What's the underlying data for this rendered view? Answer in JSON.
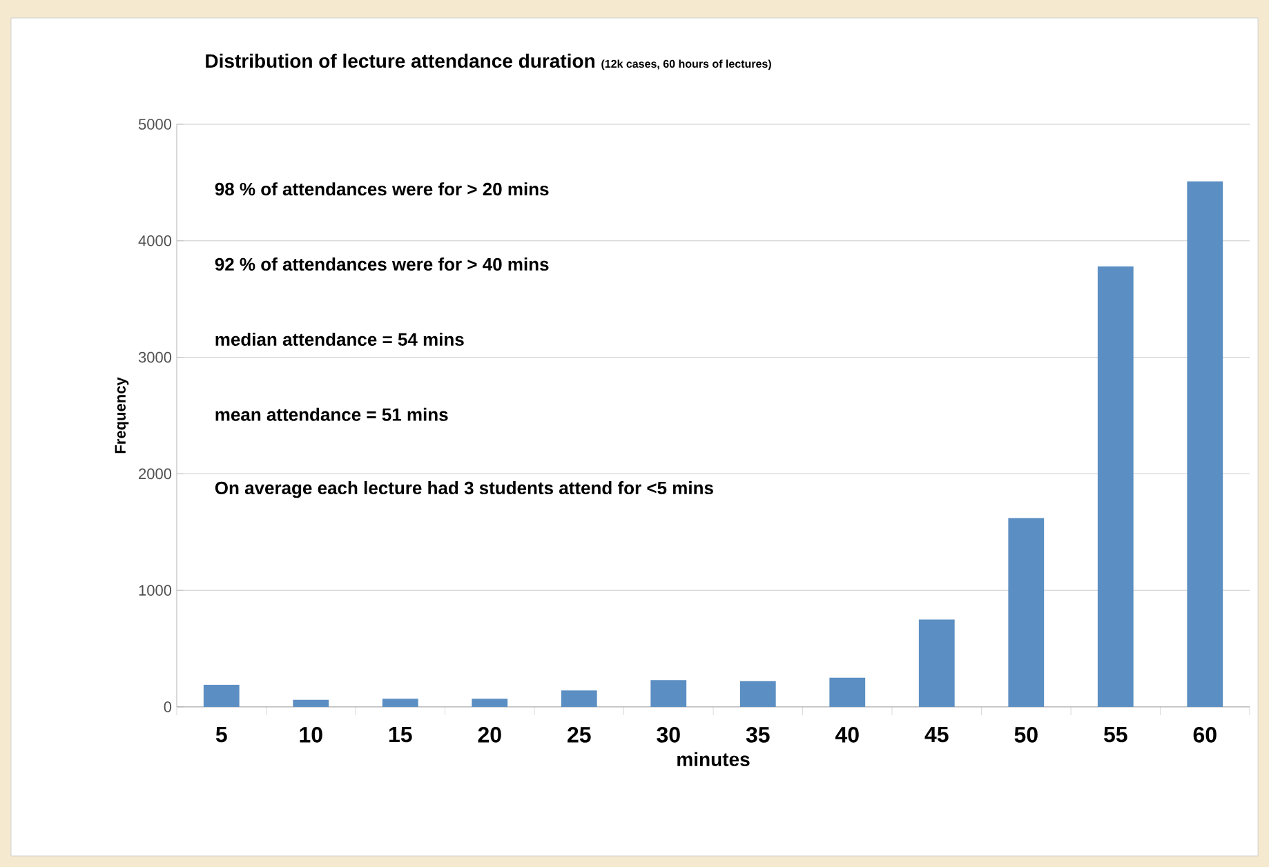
{
  "chart_data": {
    "type": "bar",
    "title": "Distribution of lecture attendance duration",
    "subtitle": "(12k cases, 60 hours of lectures)",
    "xlabel": "minutes",
    "ylabel": "Frequency",
    "annotations": [
      "98 % of attendances were for > 20 mins",
      "92 % of attendances were for > 40 mins",
      "median attendance = 54 mins",
      "mean attendance = 51 mins",
      "On average each lecture had 3 students attend for <5 mins"
    ],
    "categories": [
      "5",
      "10",
      "15",
      "20",
      "25",
      "30",
      "35",
      "40",
      "45",
      "50",
      "55",
      "60"
    ],
    "values": [
      190,
      60,
      70,
      70,
      140,
      230,
      220,
      250,
      750,
      1620,
      3780,
      4510
    ],
    "color": "#5b8ec2",
    "ylim": [
      0,
      5000
    ],
    "yticks": [
      0,
      1000,
      2000,
      3000,
      4000,
      5000
    ],
    "grid": "y"
  }
}
